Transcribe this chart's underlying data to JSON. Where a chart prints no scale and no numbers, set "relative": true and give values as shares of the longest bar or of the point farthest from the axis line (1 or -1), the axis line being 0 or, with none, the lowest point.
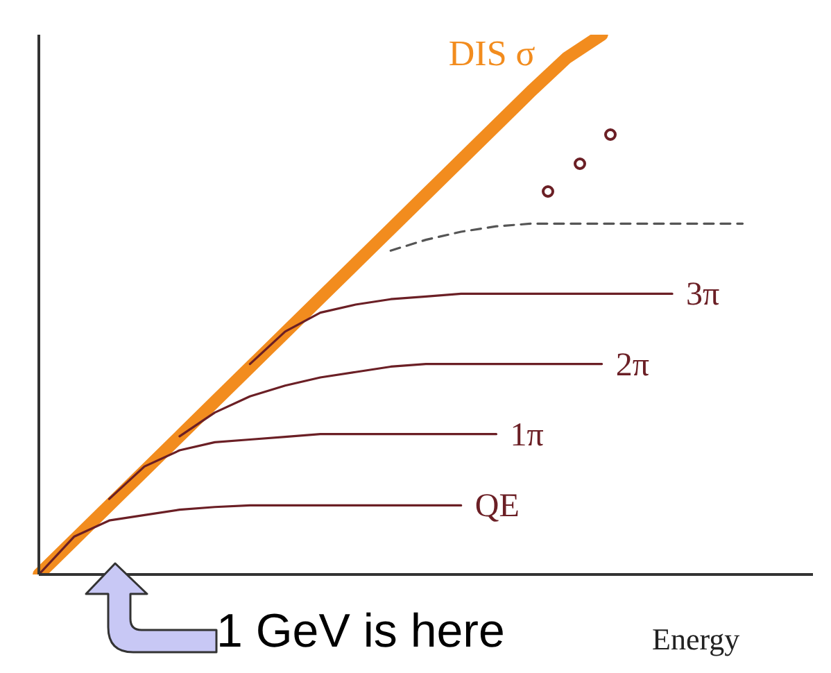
{
  "chart_data": {
    "type": "line",
    "relative": true,
    "xlabel": "Energy",
    "annotations": [
      "1 GeV is here"
    ],
    "marker": "none",
    "categories": [
      null,
      null,
      null,
      null,
      null,
      null,
      null,
      null,
      null,
      null,
      null,
      null,
      null,
      null,
      null,
      null,
      null,
      null,
      null,
      null,
      null,
      null,
      null
    ],
    "series": [
      {
        "name": "DIS σ",
        "color": "#f28c1e",
        "values": [
          0,
          0.064,
          0.128,
          0.192,
          0.256,
          0.32,
          0.384,
          0.448,
          0.512,
          0.576,
          0.64,
          0.704,
          0.768,
          0.832,
          0.896,
          0.957,
          1.0,
          null,
          null,
          null,
          null,
          null,
          null
        ]
      },
      {
        "name": "QE",
        "color": "#6b1f25",
        "values": [
          0,
          0.07,
          0.1,
          0.11,
          0.12,
          0.125,
          0.128,
          0.128,
          0.128,
          0.128,
          0.128,
          0.128,
          0.128,
          null,
          null,
          null,
          null,
          null,
          null,
          null,
          null,
          null,
          null
        ]
      },
      {
        "name": "1π",
        "color": "#6b1f25",
        "values": [
          null,
          null,
          0.14,
          0.2,
          0.23,
          0.245,
          0.25,
          0.255,
          0.26,
          0.26,
          0.26,
          0.26,
          0.26,
          0.26,
          null,
          null,
          null,
          null,
          null,
          null,
          null,
          null,
          null
        ]
      },
      {
        "name": "2π",
        "color": "#6b1f25",
        "values": [
          null,
          null,
          null,
          null,
          0.256,
          0.3,
          0.33,
          0.35,
          0.365,
          0.375,
          0.385,
          0.39,
          0.39,
          0.39,
          0.39,
          0.39,
          0.39,
          null,
          null,
          null,
          null,
          null,
          null
        ]
      },
      {
        "name": "3π",
        "color": "#6b1f25",
        "values": [
          null,
          null,
          null,
          null,
          null,
          null,
          0.39,
          0.45,
          0.485,
          0.5,
          0.51,
          0.515,
          0.52,
          0.52,
          0.52,
          0.52,
          0.52,
          0.52,
          0.52,
          null,
          null,
          null,
          null
        ]
      },
      {
        "color": "#555555",
        "line_style": "dashed",
        "values": [
          null,
          null,
          null,
          null,
          null,
          null,
          null,
          null,
          null,
          null,
          0.6,
          0.62,
          0.635,
          0.645,
          0.65,
          0.65,
          0.65,
          0.65,
          0.65,
          0.65,
          0.65,
          null,
          null
        ]
      }
    ]
  }
}
